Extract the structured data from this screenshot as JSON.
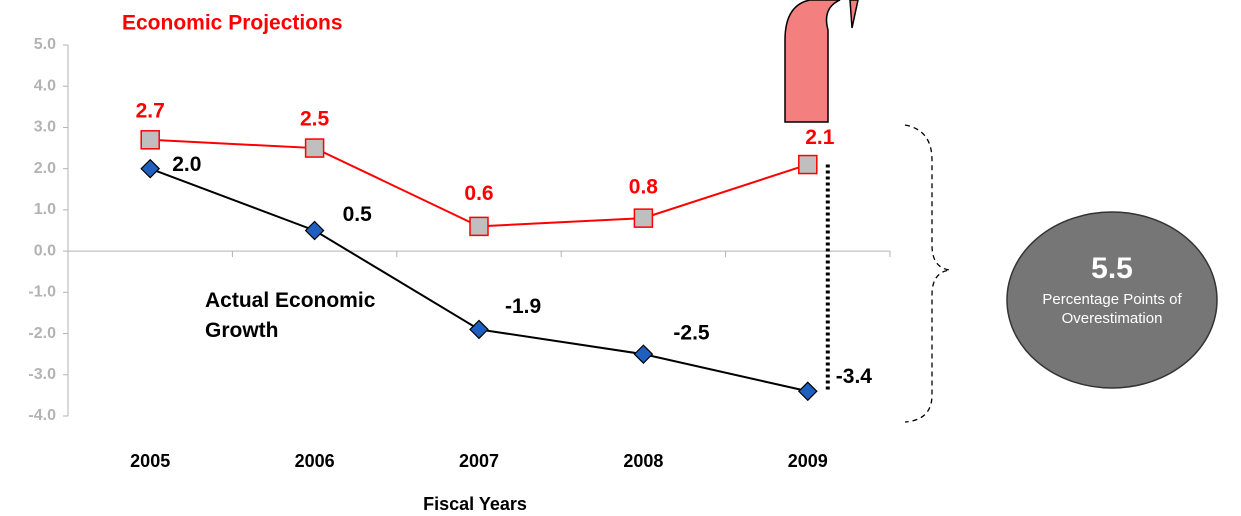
{
  "chart_data": {
    "type": "line",
    "x_label": "Fiscal Years",
    "categories": [
      "2005",
      "2006",
      "2007",
      "2008",
      "2009"
    ],
    "series": [
      {
        "name": "Economic Projections",
        "color": "#ff0000",
        "values": [
          2.7,
          2.5,
          0.6,
          0.8,
          2.1
        ],
        "value_labels": [
          "2.7",
          "2.5",
          "0.6",
          "0.8",
          "2.1"
        ]
      },
      {
        "name": "Actual Economic Growth",
        "color": "#000000",
        "values": [
          2.0,
          0.5,
          -1.9,
          -2.5,
          -3.4
        ],
        "value_labels": [
          "2.0",
          "0.5",
          "-1.9",
          "-2.5",
          "-3.4"
        ]
      }
    ],
    "ylim": [
      -4,
      5
    ],
    "yticks": [
      {
        "value": 5,
        "label": "5.0"
      },
      {
        "value": 4,
        "label": "4.0"
      },
      {
        "value": 3,
        "label": "3.0"
      },
      {
        "value": 2,
        "label": "2.0"
      },
      {
        "value": 1,
        "label": "1.0"
      },
      {
        "value": 0,
        "label": "0.0"
      },
      {
        "value": -1,
        "label": "-1.0"
      },
      {
        "value": -2,
        "label": "-2.0"
      },
      {
        "value": -3,
        "label": "-3.0"
      },
      {
        "value": -4,
        "label": "-4.0"
      }
    ],
    "annotation": {
      "value": 5.5,
      "text": "Percentage Points of Overestimation"
    }
  }
}
